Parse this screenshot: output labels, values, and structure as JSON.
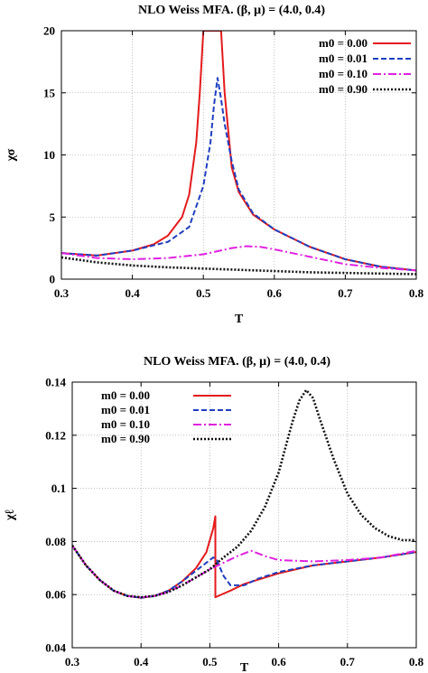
{
  "chart_data": [
    {
      "type": "line",
      "title": "NLO Weiss MFA. (β, μ) = (4.0, 0.4)",
      "xlabel": "T",
      "ylabel": "χσ",
      "xlim": [
        0.3,
        0.8
      ],
      "ylim": [
        0,
        20
      ],
      "x_ticks": [
        "0.3",
        "0.4",
        "0.5",
        "0.6",
        "0.7",
        "0.8"
      ],
      "y_ticks": [
        "0",
        "5",
        "10",
        "15",
        "20"
      ],
      "grid": true,
      "legend_position": "top-right",
      "series": [
        {
          "name": "m0 = 0.00",
          "color": "#e41a1c",
          "dash": "solid",
          "points": [
            [
              0.3,
              2.1
            ],
            [
              0.35,
              1.9
            ],
            [
              0.4,
              2.3
            ],
            [
              0.43,
              2.8
            ],
            [
              0.45,
              3.5
            ],
            [
              0.47,
              5.0
            ],
            [
              0.48,
              6.8
            ],
            [
              0.49,
              11.0
            ],
            [
              0.495,
              15.0
            ],
            [
              0.5,
              20.0
            ],
            [
              0.505,
              20.0
            ],
            [
              0.51,
              20.0
            ],
            [
              0.515,
              20.0
            ],
            [
              0.52,
              20.0
            ],
            [
              0.525,
              20.0
            ],
            [
              0.53,
              15.0
            ],
            [
              0.54,
              9.0
            ],
            [
              0.55,
              7.0
            ],
            [
              0.57,
              5.2
            ],
            [
              0.6,
              4.0
            ],
            [
              0.65,
              2.6
            ],
            [
              0.7,
              1.6
            ],
            [
              0.75,
              1.0
            ],
            [
              0.8,
              0.7
            ]
          ]
        },
        {
          "name": "m0 = 0.01",
          "color": "#1f3fbf",
          "dash": "dashed",
          "points": [
            [
              0.3,
              2.1
            ],
            [
              0.35,
              1.9
            ],
            [
              0.4,
              2.3
            ],
            [
              0.45,
              3.0
            ],
            [
              0.48,
              4.2
            ],
            [
              0.5,
              7.5
            ],
            [
              0.51,
              11.0
            ],
            [
              0.515,
              14.0
            ],
            [
              0.52,
              16.2
            ],
            [
              0.525,
              14.5
            ],
            [
              0.53,
              12.5
            ],
            [
              0.54,
              9.5
            ],
            [
              0.55,
              7.2
            ],
            [
              0.57,
              5.3
            ],
            [
              0.6,
              4.0
            ],
            [
              0.65,
              2.6
            ],
            [
              0.7,
              1.6
            ],
            [
              0.75,
              1.0
            ],
            [
              0.8,
              0.7
            ]
          ]
        },
        {
          "name": "m0 = 0.10",
          "color": "#e020e0",
          "dash": "dashdot",
          "points": [
            [
              0.3,
              2.1
            ],
            [
              0.35,
              1.7
            ],
            [
              0.4,
              1.6
            ],
            [
              0.45,
              1.7
            ],
            [
              0.5,
              2.0
            ],
            [
              0.54,
              2.5
            ],
            [
              0.56,
              2.65
            ],
            [
              0.58,
              2.6
            ],
            [
              0.6,
              2.4
            ],
            [
              0.65,
              1.8
            ],
            [
              0.7,
              1.2
            ],
            [
              0.75,
              0.9
            ],
            [
              0.8,
              0.7
            ]
          ]
        },
        {
          "name": "m0 = 0.90",
          "color": "#111111",
          "dash": "dotted",
          "points": [
            [
              0.3,
              1.75
            ],
            [
              0.35,
              1.35
            ],
            [
              0.4,
              1.1
            ],
            [
              0.45,
              0.95
            ],
            [
              0.5,
              0.85
            ],
            [
              0.55,
              0.75
            ],
            [
              0.6,
              0.65
            ],
            [
              0.65,
              0.55
            ],
            [
              0.7,
              0.5
            ],
            [
              0.75,
              0.45
            ],
            [
              0.8,
              0.4
            ]
          ]
        }
      ]
    },
    {
      "type": "line",
      "title": "NLO Weiss MFA. (β, μ) = (4.0, 0.4)",
      "xlabel": "T",
      "ylabel": "χℓ",
      "xlim": [
        0.3,
        0.8
      ],
      "ylim": [
        0.04,
        0.14
      ],
      "x_ticks": [
        "0.3",
        "0.4",
        "0.5",
        "0.6",
        "0.7",
        "0.8"
      ],
      "y_ticks": [
        "0.04",
        "0.06",
        "0.08",
        "0.1",
        "0.12",
        "0.14"
      ],
      "grid": true,
      "legend_position": "top-left",
      "series": [
        {
          "name": "m0 = 0.00",
          "color": "#e41a1c",
          "dash": "solid",
          "points": [
            [
              0.3,
              0.0785
            ],
            [
              0.32,
              0.071
            ],
            [
              0.34,
              0.0655
            ],
            [
              0.36,
              0.0615
            ],
            [
              0.38,
              0.0595
            ],
            [
              0.4,
              0.0588
            ],
            [
              0.42,
              0.0595
            ],
            [
              0.44,
              0.0615
            ],
            [
              0.46,
              0.065
            ],
            [
              0.48,
              0.07
            ],
            [
              0.495,
              0.076
            ],
            [
              0.505,
              0.085
            ],
            [
              0.508,
              0.0895
            ],
            [
              0.508,
              0.059
            ],
            [
              0.53,
              0.0615
            ],
            [
              0.55,
              0.064
            ],
            [
              0.6,
              0.068
            ],
            [
              0.65,
              0.071
            ],
            [
              0.7,
              0.0725
            ],
            [
              0.75,
              0.074
            ],
            [
              0.8,
              0.076
            ]
          ]
        },
        {
          "name": "m0 = 0.01",
          "color": "#1f3fbf",
          "dash": "dashed",
          "points": [
            [
              0.3,
              0.0785
            ],
            [
              0.32,
              0.071
            ],
            [
              0.34,
              0.0655
            ],
            [
              0.36,
              0.0615
            ],
            [
              0.38,
              0.0595
            ],
            [
              0.4,
              0.0588
            ],
            [
              0.42,
              0.0595
            ],
            [
              0.44,
              0.0615
            ],
            [
              0.46,
              0.065
            ],
            [
              0.48,
              0.069
            ],
            [
              0.5,
              0.073
            ],
            [
              0.505,
              0.074
            ],
            [
              0.51,
              0.073
            ],
            [
              0.52,
              0.067
            ],
            [
              0.53,
              0.0635
            ],
            [
              0.55,
              0.0635
            ],
            [
              0.57,
              0.066
            ],
            [
              0.6,
              0.0685
            ],
            [
              0.65,
              0.071
            ],
            [
              0.7,
              0.0725
            ],
            [
              0.75,
              0.074
            ],
            [
              0.8,
              0.076
            ]
          ]
        },
        {
          "name": "m0 = 0.10",
          "color": "#e020e0",
          "dash": "dashdot",
          "points": [
            [
              0.3,
              0.0785
            ],
            [
              0.32,
              0.071
            ],
            [
              0.34,
              0.0655
            ],
            [
              0.36,
              0.0615
            ],
            [
              0.38,
              0.0595
            ],
            [
              0.4,
              0.059
            ],
            [
              0.42,
              0.0595
            ],
            [
              0.44,
              0.061
            ],
            [
              0.46,
              0.0635
            ],
            [
              0.48,
              0.0665
            ],
            [
              0.5,
              0.0695
            ],
            [
              0.52,
              0.072
            ],
            [
              0.54,
              0.0745
            ],
            [
              0.56,
              0.0765
            ],
            [
              0.58,
              0.0745
            ],
            [
              0.6,
              0.073
            ],
            [
              0.65,
              0.0725
            ],
            [
              0.7,
              0.073
            ],
            [
              0.75,
              0.074
            ],
            [
              0.8,
              0.0765
            ]
          ]
        },
        {
          "name": "m0 = 0.90",
          "color": "#111111",
          "dash": "dotted",
          "points": [
            [
              0.3,
              0.0785
            ],
            [
              0.32,
              0.071
            ],
            [
              0.34,
              0.0655
            ],
            [
              0.36,
              0.0615
            ],
            [
              0.38,
              0.0595
            ],
            [
              0.4,
              0.059
            ],
            [
              0.42,
              0.0595
            ],
            [
              0.44,
              0.061
            ],
            [
              0.46,
              0.0635
            ],
            [
              0.48,
              0.0665
            ],
            [
              0.5,
              0.0695
            ],
            [
              0.52,
              0.074
            ],
            [
              0.54,
              0.078
            ],
            [
              0.56,
              0.084
            ],
            [
              0.58,
              0.093
            ],
            [
              0.6,
              0.106
            ],
            [
              0.62,
              0.125
            ],
            [
              0.63,
              0.133
            ],
            [
              0.64,
              0.137
            ],
            [
              0.65,
              0.134
            ],
            [
              0.66,
              0.126
            ],
            [
              0.68,
              0.111
            ],
            [
              0.7,
              0.098
            ],
            [
              0.72,
              0.09
            ],
            [
              0.74,
              0.085
            ],
            [
              0.76,
              0.082
            ],
            [
              0.78,
              0.0805
            ],
            [
              0.8,
              0.0805
            ]
          ]
        }
      ]
    }
  ]
}
